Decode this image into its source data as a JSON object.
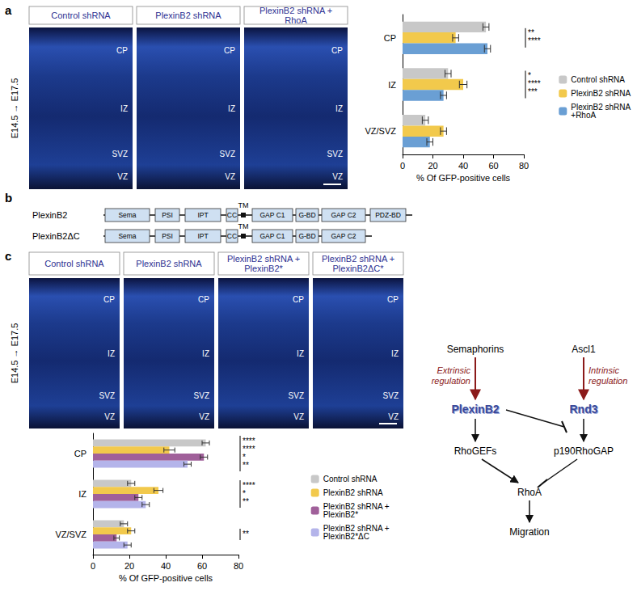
{
  "chart_data": [
    {
      "type": "bar",
      "orientation": "horizontal",
      "categories": [
        "CP",
        "IZ",
        "VZ/SVZ"
      ],
      "series": [
        {
          "name": "Control shRNA",
          "color": "#c8c8c8",
          "values": [
            55,
            30,
            15
          ],
          "errors": [
            2,
            2,
            2
          ]
        },
        {
          "name": "PlexinB2 shRNA",
          "color": "#f2c94c",
          "values": [
            35,
            40,
            27
          ],
          "errors": [
            2,
            2.5,
            2
          ]
        },
        {
          "name": "PlexinB2 shRNA +RhoA",
          "color": "#6a9fd4",
          "values": [
            56,
            27,
            18
          ],
          "errors": [
            2,
            2,
            2
          ]
        }
      ],
      "xlabel": "% Of GFP-positive cells",
      "xlim": [
        0,
        80
      ],
      "xticks": [
        0,
        20,
        40,
        60,
        80
      ],
      "legend": "right",
      "annotations": [
        {
          "category": "CP",
          "text": "**"
        },
        {
          "category": "CP",
          "text": "****"
        },
        {
          "category": "IZ",
          "text": "*"
        },
        {
          "category": "IZ",
          "text": "****"
        },
        {
          "category": "IZ",
          "text": "***"
        }
      ]
    },
    {
      "type": "bar",
      "orientation": "horizontal",
      "categories": [
        "CP",
        "IZ",
        "VZ/SVZ"
      ],
      "series": [
        {
          "name": "Control shRNA",
          "color": "#c8c8c8",
          "values": [
            62,
            21,
            17
          ],
          "errors": [
            2,
            2,
            2
          ]
        },
        {
          "name": "PlexinB2 shRNA",
          "color": "#f2c94c",
          "values": [
            42,
            36,
            21
          ],
          "errors": [
            3,
            2.5,
            2
          ]
        },
        {
          "name": "PlexinB2 shRNA + PlexinB2*",
          "color": "#a0609a",
          "values": [
            61,
            25,
            13
          ],
          "errors": [
            2,
            2,
            1.5
          ]
        },
        {
          "name": "PlexinB2 shRNA + PlexinB2*ΔC",
          "color": "#b4b4ea",
          "values": [
            52,
            29,
            19
          ],
          "errors": [
            2,
            2,
            2
          ]
        }
      ],
      "xlabel": "% Of GFP-positive cells",
      "xlim": [
        0,
        80
      ],
      "xticks": [
        0,
        20,
        40,
        60,
        80
      ],
      "legend": "right",
      "annotations": [
        {
          "category": "CP",
          "text": "****"
        },
        {
          "category": "CP",
          "text": "****"
        },
        {
          "category": "CP",
          "text": "*"
        },
        {
          "category": "CP",
          "text": "**"
        },
        {
          "category": "IZ",
          "text": "****"
        },
        {
          "category": "IZ",
          "text": "*"
        },
        {
          "category": "IZ",
          "text": "**"
        },
        {
          "category": "VZ/SVZ",
          "text": "**"
        }
      ]
    }
  ],
  "figure": {
    "panel_a": {
      "letter": "a",
      "stage": "E14.5 → E17.5",
      "images": [
        {
          "title": "Control shRNA",
          "regions": [
            "CP",
            "IZ",
            "SVZ",
            "VZ"
          ]
        },
        {
          "title": "PlexinB2 shRNA",
          "regions": [
            "CP",
            "IZ",
            "SVZ",
            "VZ"
          ]
        },
        {
          "title": "PlexinB2 shRNA + RhoA",
          "regions": [
            "CP",
            "IZ",
            "SVZ",
            "VZ"
          ]
        }
      ]
    },
    "panel_b": {
      "letter": "b",
      "proteins": [
        {
          "name": "PlexinB2",
          "tm": "TM",
          "domains": [
            "Sema",
            "PSI",
            "IPT",
            "CC",
            "GAP C1",
            "G-BD",
            "GAP C2",
            "PDZ-BD"
          ]
        },
        {
          "name": "PlexinB2ΔC",
          "tm": "TM",
          "domains": [
            "Sema",
            "PSI",
            "IPT",
            "CC",
            "GAP C1",
            "G-BD",
            "GAP C2"
          ]
        }
      ]
    },
    "panel_c": {
      "letter": "c",
      "stage": "E14.5 → E17.5",
      "images": [
        {
          "title": "Control shRNA",
          "regions": [
            "CP",
            "IZ",
            "SVZ",
            "VZ"
          ]
        },
        {
          "title": "PlexinB2 shRNA",
          "regions": [
            "CP",
            "IZ",
            "SVZ",
            "VZ"
          ]
        },
        {
          "title": "PlexinB2 shRNA + PlexinB2*",
          "regions": [
            "CP",
            "IZ",
            "SVZ",
            "VZ"
          ]
        },
        {
          "title": "PlexinB2 shRNA + PlexinB2ΔC*",
          "regions": [
            "CP",
            "IZ",
            "SVZ",
            "VZ"
          ]
        }
      ]
    },
    "pathway": {
      "sources": [
        "Semaphorins",
        "Ascl1"
      ],
      "regulation": [
        "Extrinsic regulation",
        "Intrinsic regulation"
      ],
      "receptors": [
        "PlexinB2",
        "Rnd3"
      ],
      "effectors": [
        "RhoGEFs",
        "p190RhoGAP"
      ],
      "target": "RhoA",
      "output": "Migration"
    }
  }
}
